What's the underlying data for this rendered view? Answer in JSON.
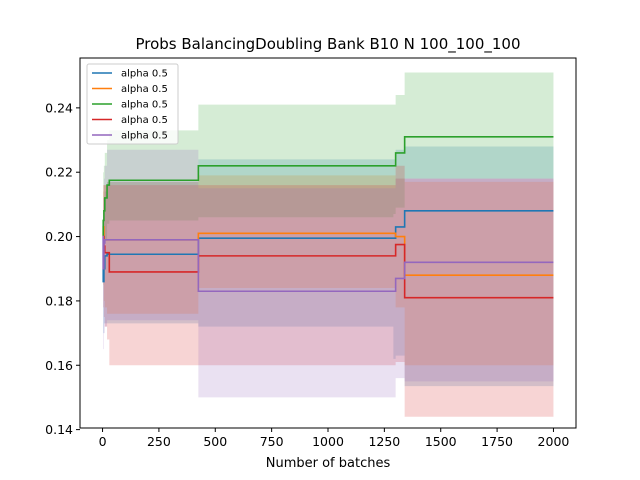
{
  "chart_data": {
    "type": "line",
    "title": "Probs BalancingDoubling Bank B10 N 100_100_100",
    "xlabel": "Number of batches",
    "ylabel": "",
    "xlim": [
      -100,
      2100
    ],
    "ylim": [
      0.1405,
      0.2555
    ],
    "xticks": [
      0,
      250,
      500,
      750,
      1000,
      1250,
      1500,
      1750,
      2000
    ],
    "yticks": [
      0.14,
      0.16,
      0.18,
      0.2,
      0.22,
      0.24
    ],
    "ytick_labels": [
      "0.14",
      "0.16",
      "0.18",
      "0.20",
      "0.22",
      "0.24"
    ],
    "grid": false,
    "legend_position": "top-left",
    "series": [
      {
        "name": "alpha 0.5",
        "color": "#1f77b4",
        "x": [
          0,
          3,
          6,
          10,
          20,
          30,
          100,
          420,
          425,
          1290,
          1295,
          1300,
          1330,
          1340,
          2000
        ],
        "y": [
          0.2,
          0.186,
          0.19,
          0.194,
          0.1945,
          0.1945,
          0.1945,
          0.1945,
          0.1995,
          0.1995,
          0.1995,
          0.203,
          0.203,
          0.208,
          0.208
        ],
        "lower": [
          0.2,
          0.17,
          0.173,
          0.173,
          0.173,
          0.173,
          0.173,
          0.173,
          0.172,
          0.162,
          0.162,
          0.163,
          0.163,
          0.1535,
          0.1535
        ],
        "upper": [
          0.2,
          0.2,
          0.21,
          0.214,
          0.217,
          0.217,
          0.217,
          0.217,
          0.224,
          0.224,
          0.224,
          0.227,
          0.227,
          0.228,
          0.228
        ]
      },
      {
        "name": "alpha 0.5",
        "color": "#ff7f0e",
        "x": [
          0,
          3,
          6,
          10,
          20,
          30,
          100,
          420,
          425,
          1290,
          1295,
          1300,
          1330,
          1340,
          2000
        ],
        "y": [
          0.2,
          0.203,
          0.199,
          0.199,
          0.199,
          0.199,
          0.199,
          0.199,
          0.201,
          0.201,
          0.201,
          0.2,
          0.2,
          0.188,
          0.188
        ],
        "lower": [
          0.2,
          0.185,
          0.18,
          0.178,
          0.176,
          0.176,
          0.176,
          0.176,
          0.184,
          0.184,
          0.184,
          0.178,
          0.178,
          0.16,
          0.16
        ],
        "upper": [
          0.2,
          0.214,
          0.216,
          0.216,
          0.217,
          0.217,
          0.217,
          0.217,
          0.219,
          0.219,
          0.219,
          0.218,
          0.218,
          0.217,
          0.217
        ]
      },
      {
        "name": "alpha 0.5",
        "color": "#2ca02c",
        "x": [
          0,
          3,
          6,
          10,
          20,
          30,
          100,
          420,
          425,
          1290,
          1295,
          1300,
          1330,
          1340,
          2000
        ],
        "y": [
          0.2,
          0.205,
          0.208,
          0.212,
          0.216,
          0.2175,
          0.2175,
          0.2175,
          0.222,
          0.222,
          0.222,
          0.226,
          0.226,
          0.231,
          0.231
        ],
        "lower": [
          0.2,
          0.196,
          0.199,
          0.199,
          0.204,
          0.205,
          0.205,
          0.205,
          0.206,
          0.207,
          0.207,
          0.209,
          0.209,
          0.218,
          0.218
        ],
        "upper": [
          0.2,
          0.22,
          0.222,
          0.226,
          0.23,
          0.233,
          0.233,
          0.233,
          0.241,
          0.241,
          0.241,
          0.244,
          0.244,
          0.251,
          0.251
        ]
      },
      {
        "name": "alpha 0.5",
        "color": "#d62728",
        "x": [
          0,
          3,
          6,
          10,
          20,
          30,
          100,
          420,
          425,
          1290,
          1295,
          1300,
          1330,
          1340,
          2000
        ],
        "y": [
          0.2,
          0.2,
          0.197,
          0.195,
          0.195,
          0.189,
          0.189,
          0.189,
          0.194,
          0.194,
          0.194,
          0.1975,
          0.1975,
          0.181,
          0.181
        ],
        "lower": [
          0.2,
          0.178,
          0.175,
          0.172,
          0.168,
          0.16,
          0.16,
          0.16,
          0.16,
          0.16,
          0.16,
          0.161,
          0.161,
          0.144,
          0.144
        ],
        "upper": [
          0.2,
          0.216,
          0.216,
          0.216,
          0.216,
          0.216,
          0.216,
          0.216,
          0.216,
          0.216,
          0.216,
          0.222,
          0.222,
          0.218,
          0.218
        ]
      },
      {
        "name": "alpha 0.5",
        "color": "#9467bd",
        "x": [
          0,
          3,
          6,
          10,
          20,
          30,
          100,
          420,
          425,
          1290,
          1295,
          1300,
          1330,
          1340,
          2000
        ],
        "y": [
          0.2,
          0.19,
          0.198,
          0.199,
          0.199,
          0.199,
          0.199,
          0.199,
          0.183,
          0.183,
          0.183,
          0.187,
          0.187,
          0.192,
          0.192
        ],
        "lower": [
          0.2,
          0.165,
          0.17,
          0.172,
          0.174,
          0.174,
          0.174,
          0.174,
          0.15,
          0.15,
          0.15,
          0.156,
          0.156,
          0.155,
          0.155
        ],
        "upper": [
          0.2,
          0.212,
          0.218,
          0.222,
          0.227,
          0.227,
          0.227,
          0.227,
          0.215,
          0.215,
          0.215,
          0.218,
          0.218,
          0.218,
          0.218
        ]
      }
    ]
  }
}
